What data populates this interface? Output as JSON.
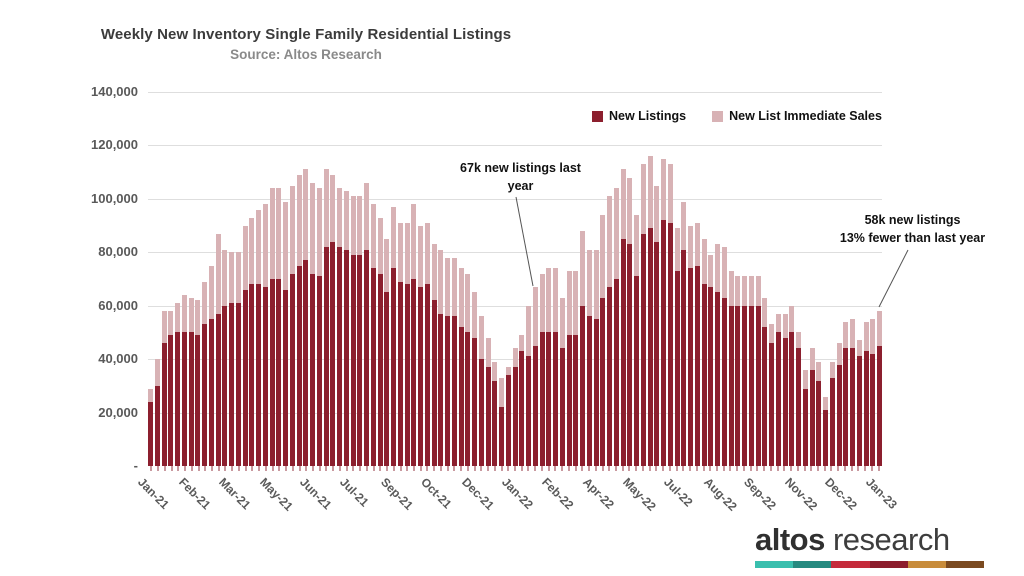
{
  "header": {
    "title": "Weekly New Inventory Single Family Residential Listings",
    "subtitle": "Source: Altos Research"
  },
  "legend": [
    {
      "label": "New Listings",
      "color": "#8c1f2e"
    },
    {
      "label": "New List Immediate Sales",
      "color": "#d8b2b5"
    }
  ],
  "annotations": [
    {
      "lines": [
        "67k new listings last",
        "year"
      ]
    },
    {
      "lines": [
        "58k new listings",
        "13% fewer than last year"
      ]
    }
  ],
  "logo": {
    "brand_bold": "altos",
    "brand_light": " research",
    "bar_colors": [
      "#3abfae",
      "#268a80",
      "#c52b3b",
      "#8c1c2c",
      "#c88c3b",
      "#7a4a20"
    ]
  },
  "chart_data": {
    "type": "bar",
    "stacked": true,
    "title": "Weekly New Inventory Single Family Residential Listings",
    "subtitle": "Source: Altos Research",
    "xlabel": "",
    "ylabel": "",
    "ylim": [
      0,
      140000
    ],
    "grid": "horizontal",
    "legend_position": "top-right",
    "x_tick_labels": [
      "Jan-21",
      "Feb-21",
      "Mar-21",
      "May-21",
      "Jun-21",
      "Jul-21",
      "Sep-21",
      "Oct-21",
      "Dec-21",
      "Jan-22",
      "Feb-22",
      "Apr-22",
      "May-22",
      "Jul-22",
      "Aug-22",
      "Sep-22",
      "Nov-22",
      "Dec-22",
      "Jan-23"
    ],
    "x_tick_every": 6,
    "y_ticks": [
      {
        "value": 0,
        "label": "-"
      },
      {
        "value": 20000,
        "label": "20,000"
      },
      {
        "value": 40000,
        "label": "40,000"
      },
      {
        "value": 60000,
        "label": "60,000"
      },
      {
        "value": 80000,
        "label": "80,000"
      },
      {
        "value": 100000,
        "label": "100,000"
      },
      {
        "value": 120000,
        "label": "120,000"
      },
      {
        "value": 140000,
        "label": "140,000"
      }
    ],
    "series": [
      {
        "name": "New Listings",
        "color": "#8c1f2e",
        "values": [
          24000,
          30000,
          46000,
          49000,
          50000,
          50000,
          50000,
          49000,
          53000,
          55000,
          57000,
          60000,
          61000,
          61000,
          66000,
          68000,
          68000,
          67000,
          70000,
          70000,
          66000,
          72000,
          75000,
          77000,
          72000,
          71000,
          82000,
          84000,
          82000,
          81000,
          79000,
          79000,
          81000,
          74000,
          72000,
          65000,
          74000,
          69000,
          68000,
          70000,
          67000,
          68000,
          62000,
          57000,
          56000,
          56000,
          52000,
          50000,
          48000,
          40000,
          37000,
          32000,
          22000,
          34000,
          37000,
          43000,
          41000,
          45000,
          50000,
          50000,
          50000,
          44000,
          49000,
          49000,
          60000,
          56000,
          55000,
          63000,
          67000,
          70000,
          85000,
          83000,
          71000,
          87000,
          89000,
          84000,
          92000,
          91000,
          73000,
          81000,
          74000,
          75000,
          68000,
          67000,
          65000,
          63000,
          60000,
          60000,
          60000,
          60000,
          60000,
          52000,
          46000,
          50000,
          48000,
          50000,
          44000,
          29000,
          36000,
          32000,
          21000,
          33000,
          38000,
          44000,
          44000,
          41000,
          43000,
          42000,
          45000
        ]
      },
      {
        "name": "New List Immediate Sales",
        "color": "#d8b2b5",
        "values": [
          5000,
          10000,
          12000,
          9000,
          11000,
          14000,
          13000,
          13000,
          16000,
          20000,
          30000,
          21000,
          19000,
          19000,
          24000,
          25000,
          28000,
          31000,
          34000,
          34000,
          33000,
          33000,
          34000,
          34000,
          34000,
          33000,
          29000,
          25000,
          22000,
          22000,
          22000,
          22000,
          25000,
          24000,
          21000,
          20000,
          23000,
          22000,
          23000,
          28000,
          23000,
          23000,
          21000,
          24000,
          22000,
          22000,
          22000,
          22000,
          17000,
          16000,
          11000,
          7000,
          11000,
          3000,
          7000,
          6000,
          19000,
          22000,
          22000,
          24000,
          24000,
          19000,
          24000,
          24000,
          28000,
          25000,
          26000,
          31000,
          34000,
          34000,
          26000,
          25000,
          23000,
          26000,
          27000,
          21000,
          23000,
          22000,
          16000,
          18000,
          16000,
          16000,
          17000,
          12000,
          18000,
          19000,
          13000,
          11000,
          11000,
          11000,
          11000,
          11000,
          7000,
          7000,
          9000,
          10000,
          6000,
          7000,
          8000,
          7000,
          5000,
          6000,
          8000,
          10000,
          11000,
          6000,
          11000,
          13000,
          13000
        ]
      }
    ],
    "callouts": [
      {
        "text": "67k new listings last year",
        "points_to_week_index": 57,
        "value": 67000
      },
      {
        "text": "58k new listings 13% fewer than last year",
        "points_to_week_index": 108,
        "value": 58000
      }
    ]
  }
}
